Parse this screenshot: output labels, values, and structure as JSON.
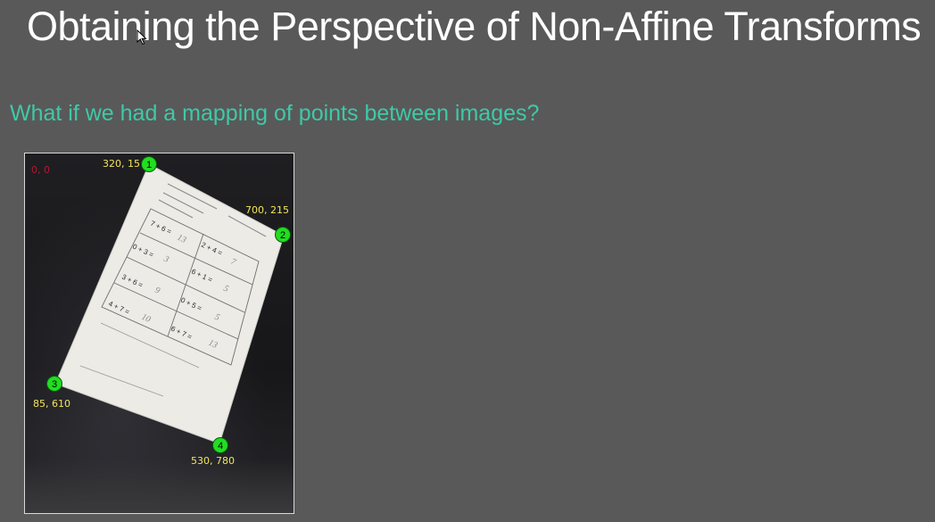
{
  "slide": {
    "title": "Obtaining the Perspective of Non-Affine Transforms",
    "subtitle": "What if we had a mapping of points between images?"
  },
  "photo": {
    "origin_label": "0, 0",
    "points": [
      {
        "number": "1",
        "coords": "320, 15"
      },
      {
        "number": "2",
        "coords": "700, 215"
      },
      {
        "number": "3",
        "coords": "85, 610"
      },
      {
        "number": "4",
        "coords": "530, 780"
      }
    ],
    "worksheet": {
      "problems_left": [
        "7 + 6 =",
        "0 + 3 =",
        "3 + 6 =",
        "4 + 7 ="
      ],
      "answers_left": [
        "13",
        "3",
        "9",
        "10"
      ],
      "problems_right": [
        "2 + 4 =",
        "6 + 1 =",
        "0 + 5 =",
        "6 + 7 ="
      ],
      "answers_right": [
        "7",
        "5",
        "5",
        "13"
      ]
    }
  },
  "colors": {
    "background": "#595959",
    "title": "#ffffff",
    "subtitle": "#3ec9a7",
    "marker": "#22dd22",
    "coord_text": "#f2e55b",
    "origin_text": "#b3172f"
  },
  "icons": [
    "mouse-pointer-icon"
  ]
}
